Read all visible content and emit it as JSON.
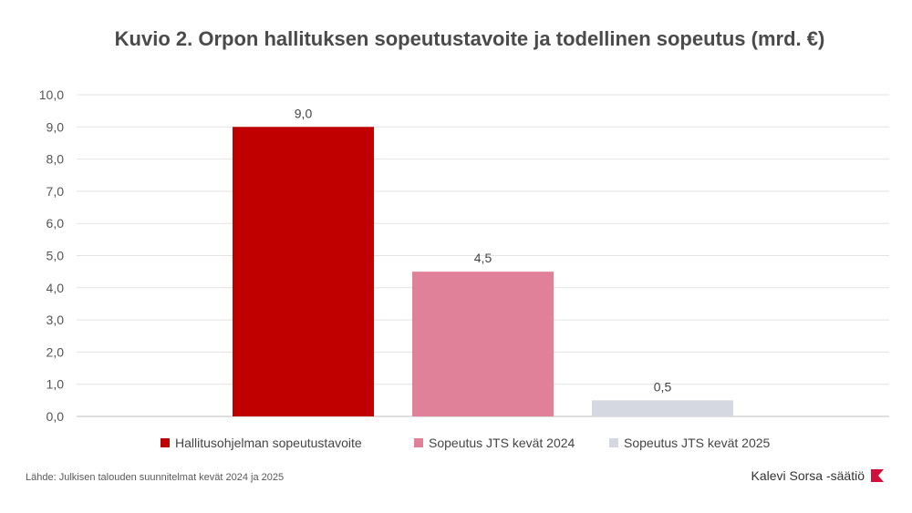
{
  "title": "Kuvio 2. Orpon hallituksen sopeutustavoite ja todellinen sopeutus (mrd. €)",
  "source": "Lähde: Julkisen talouden suunnitelmat kevät 2024 ja 2025",
  "brand": {
    "name": "Kalevi Sorsa -säätiö",
    "logo_icon": "k-logo-icon",
    "logo_color": "#d0103a"
  },
  "chart_data": {
    "type": "bar",
    "title": "Kuvio 2. Orpon hallituksen sopeutustavoite ja todellinen sopeutus (mrd. €)",
    "xlabel": "",
    "ylabel": "",
    "ylim": [
      0,
      10
    ],
    "yticks": [
      "0,0",
      "1,0",
      "2,0",
      "3,0",
      "4,0",
      "5,0",
      "6,0",
      "7,0",
      "8,0",
      "9,0",
      "10,0"
    ],
    "grid": true,
    "legend_position": "bottom",
    "series": [
      {
        "name": "Hallitusohjelman sopeutustavoite",
        "value": 9.0,
        "label": "9,0",
        "color": "#c00000"
      },
      {
        "name": "Sopeutus JTS kevät 2024",
        "value": 4.5,
        "label": "4,5",
        "color": "#e08099"
      },
      {
        "name": "Sopeutus JTS kevät 2025",
        "value": 0.5,
        "label": "0,5",
        "color": "#d5d8e0"
      }
    ]
  }
}
